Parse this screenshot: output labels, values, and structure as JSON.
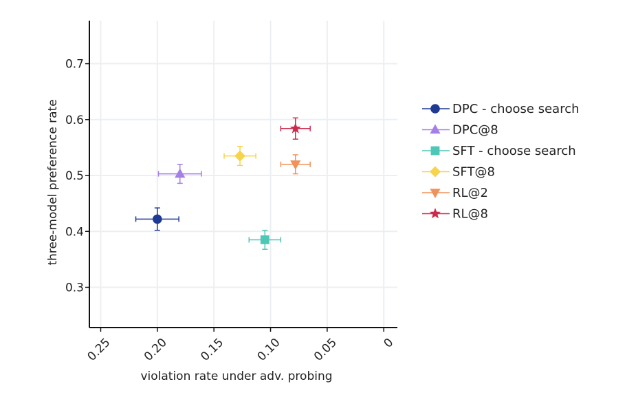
{
  "chart_data": {
    "type": "scatter",
    "xlabel": "violation rate under adv. probing",
    "ylabel": "three-model preference rate",
    "xlim": [
      0.26,
      -0.012
    ],
    "ylim": [
      0.228,
      0.777
    ],
    "x_reversed": true,
    "x_ticks": [
      0.25,
      0.2,
      0.15,
      0.1,
      0.05,
      0
    ],
    "x_tick_labels": [
      "0.25",
      "0.20",
      "0.15",
      "0.10",
      "0.05",
      "0"
    ],
    "y_ticks": [
      0.3,
      0.4,
      0.5,
      0.6,
      0.7
    ],
    "y_tick_labels": [
      "0.3",
      "0.4",
      "0.5",
      "0.6",
      "0.7"
    ],
    "grid": true,
    "legend_position": "right",
    "series": [
      {
        "name": "DPC - choose search",
        "marker": "circle",
        "color": "#1f3a93",
        "x": 0.2,
        "y": 0.422,
        "xerr": 0.019,
        "yerr": 0.02
      },
      {
        "name": "DPC@8",
        "marker": "triangle-up",
        "color": "#a57ee8",
        "x": 0.18,
        "y": 0.503,
        "xerr": 0.019,
        "yerr": 0.017
      },
      {
        "name": "SFT - choose search",
        "marker": "square",
        "color": "#4fc7b6",
        "x": 0.105,
        "y": 0.385,
        "xerr": 0.014,
        "yerr": 0.017
      },
      {
        "name": "SFT@8",
        "marker": "diamond",
        "color": "#f7d44a",
        "x": 0.127,
        "y": 0.535,
        "xerr": 0.014,
        "yerr": 0.017
      },
      {
        "name": "RL@2",
        "marker": "triangle-down",
        "color": "#f0925a",
        "x": 0.078,
        "y": 0.52,
        "xerr": 0.013,
        "yerr": 0.017
      },
      {
        "name": "RL@8",
        "marker": "star",
        "color": "#cc2b4e",
        "x": 0.078,
        "y": 0.584,
        "xerr": 0.013,
        "yerr": 0.019
      }
    ]
  }
}
